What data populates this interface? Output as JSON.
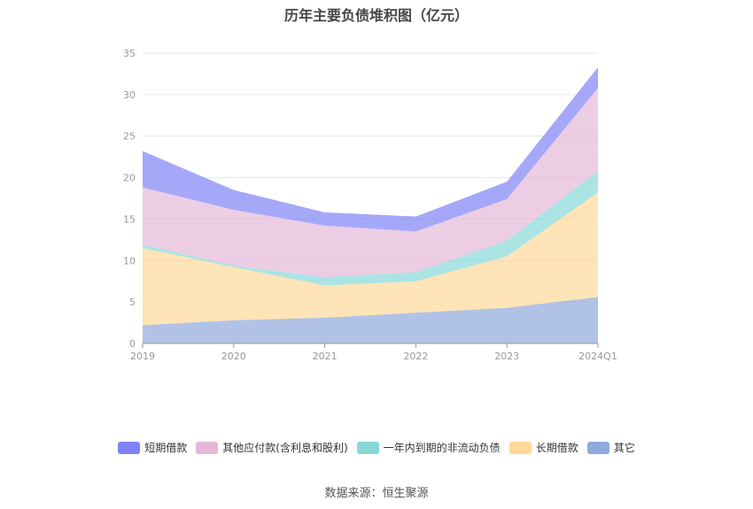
{
  "chart_data": {
    "type": "area",
    "stacked": true,
    "title": "历年主要负债堆积图（亿元）",
    "categories": [
      "2019",
      "2020",
      "2021",
      "2022",
      "2023",
      "2024Q1"
    ],
    "ylim": [
      0,
      35
    ],
    "yticks": [
      0,
      5,
      10,
      15,
      20,
      25,
      30,
      35
    ],
    "grid": true,
    "legend_position": "bottom",
    "series": [
      {
        "name": "其它",
        "color": "#8faadc",
        "values": [
          2.2,
          2.8,
          3.1,
          3.7,
          4.3,
          5.6
        ]
      },
      {
        "name": "长期借款",
        "color": "#ffd899",
        "values": [
          9.3,
          6.4,
          3.9,
          3.8,
          6.2,
          12.6
        ]
      },
      {
        "name": "一年内到期的非流动负债",
        "color": "#88d8d8",
        "values": [
          0.4,
          0.2,
          1.0,
          1.1,
          1.9,
          2.6
        ]
      },
      {
        "name": "其他应付款(含利息和股利)",
        "color": "#e6b8d8",
        "values": [
          6.9,
          6.7,
          6.2,
          4.9,
          5.0,
          10.0
        ]
      },
      {
        "name": "短期借款",
        "color": "#7f83f7",
        "values": [
          4.4,
          2.4,
          1.6,
          1.8,
          2.1,
          2.5
        ]
      }
    ]
  },
  "legend_order": [
    "短期借款",
    "其他应付款(含利息和股利)",
    "一年内到期的非流动负债",
    "长期借款",
    "其它"
  ],
  "source": "数据来源：恒生聚源"
}
